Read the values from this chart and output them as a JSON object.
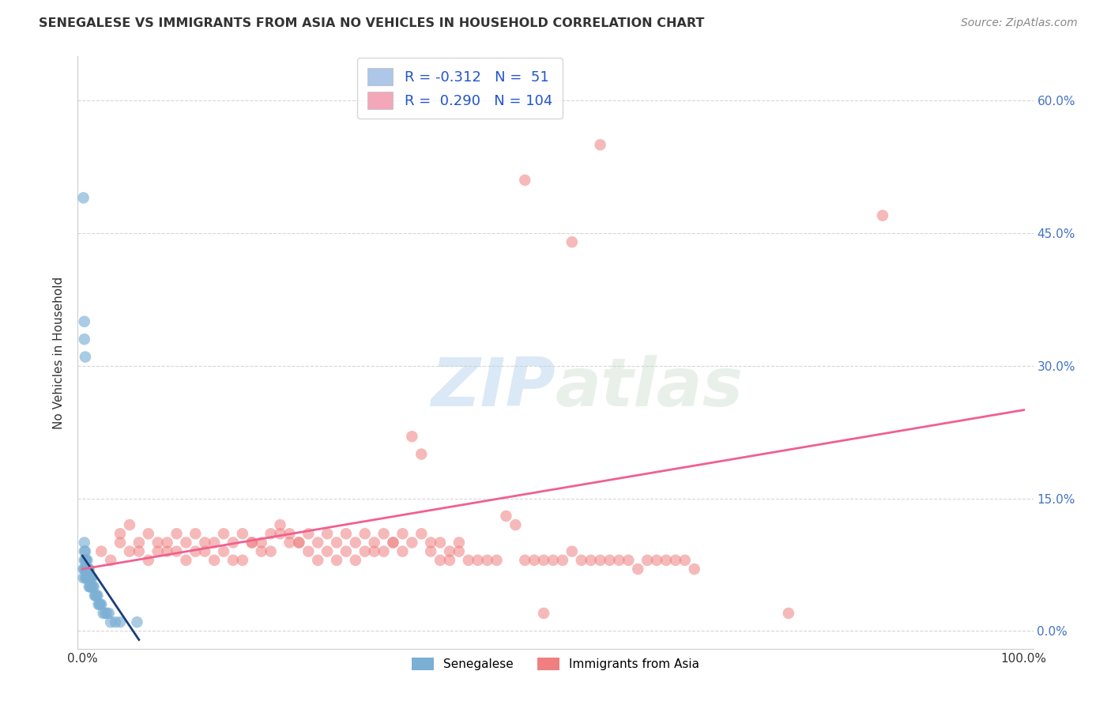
{
  "title": "SENEGALESE VS IMMIGRANTS FROM ASIA NO VEHICLES IN HOUSEHOLD CORRELATION CHART",
  "source": "Source: ZipAtlas.com",
  "ylabel": "No Vehicles in Household",
  "legend_label_senegalese": "Senegalese",
  "legend_label_asia": "Immigrants from Asia",
  "watermark_zip": "ZIP",
  "watermark_atlas": "atlas",
  "senegalese_color": "#7bafd4",
  "asia_color": "#f08080",
  "trendline_senegalese_color": "#1a3e7a",
  "trendline_asia_color": "#f06090",
  "background_color": "#ffffff",
  "grid_color": "#cccccc",
  "legend_patch_sen": "#aec6e8",
  "legend_patch_asia": "#f4a7b9",
  "legend_text_color": "#2255cc",
  "right_axis_color": "#4472c4",
  "title_color": "#333333",
  "source_color": "#888888",
  "y_tick_pos": [
    0.0,
    0.15,
    0.3,
    0.45,
    0.6
  ],
  "y_tick_labels_right": [
    "0.0%",
    "15.0%",
    "30.0%",
    "45.0%",
    "60.0%"
  ],
  "x_tick_pos": [
    0.0,
    0.1,
    0.2,
    0.3,
    0.4,
    0.5,
    0.6,
    0.7,
    0.8,
    0.9,
    1.0
  ],
  "x_tick_labels": [
    "0.0%",
    "",
    "",
    "",
    "",
    "",
    "",
    "",
    "",
    "",
    "100.0%"
  ],
  "xlim": [
    -0.005,
    1.01
  ],
  "ylim": [
    -0.02,
    0.65
  ],
  "senegalese_x": [
    0.001,
    0.001,
    0.002,
    0.002,
    0.002,
    0.002,
    0.003,
    0.003,
    0.003,
    0.003,
    0.004,
    0.004,
    0.004,
    0.004,
    0.005,
    0.005,
    0.005,
    0.006,
    0.006,
    0.006,
    0.007,
    0.007,
    0.007,
    0.008,
    0.008,
    0.009,
    0.009,
    0.01,
    0.01,
    0.011,
    0.012,
    0.013,
    0.014,
    0.015,
    0.016,
    0.017,
    0.018,
    0.019,
    0.02,
    0.022,
    0.024,
    0.026,
    0.028,
    0.03,
    0.035,
    0.04,
    0.001,
    0.002,
    0.002,
    0.003,
    0.058
  ],
  "senegalese_y": [
    0.06,
    0.07,
    0.07,
    0.08,
    0.09,
    0.1,
    0.06,
    0.07,
    0.08,
    0.09,
    0.06,
    0.07,
    0.07,
    0.08,
    0.06,
    0.07,
    0.08,
    0.06,
    0.07,
    0.07,
    0.05,
    0.06,
    0.07,
    0.05,
    0.06,
    0.05,
    0.06,
    0.05,
    0.06,
    0.05,
    0.05,
    0.04,
    0.04,
    0.04,
    0.04,
    0.03,
    0.03,
    0.03,
    0.03,
    0.02,
    0.02,
    0.02,
    0.02,
    0.01,
    0.01,
    0.01,
    0.49,
    0.35,
    0.33,
    0.31,
    0.01
  ],
  "asia_x": [
    0.02,
    0.03,
    0.04,
    0.05,
    0.06,
    0.07,
    0.08,
    0.09,
    0.1,
    0.11,
    0.12,
    0.13,
    0.14,
    0.15,
    0.16,
    0.17,
    0.18,
    0.19,
    0.2,
    0.21,
    0.22,
    0.23,
    0.24,
    0.25,
    0.26,
    0.27,
    0.28,
    0.29,
    0.3,
    0.31,
    0.32,
    0.33,
    0.34,
    0.35,
    0.36,
    0.37,
    0.38,
    0.39,
    0.4,
    0.41,
    0.42,
    0.43,
    0.44,
    0.45,
    0.46,
    0.47,
    0.48,
    0.49,
    0.5,
    0.51,
    0.52,
    0.53,
    0.54,
    0.55,
    0.56,
    0.57,
    0.58,
    0.59,
    0.6,
    0.61,
    0.62,
    0.63,
    0.64,
    0.65,
    0.04,
    0.05,
    0.06,
    0.07,
    0.08,
    0.09,
    0.1,
    0.11,
    0.12,
    0.13,
    0.14,
    0.15,
    0.16,
    0.17,
    0.18,
    0.19,
    0.2,
    0.21,
    0.22,
    0.23,
    0.24,
    0.25,
    0.26,
    0.27,
    0.28,
    0.29,
    0.3,
    0.31,
    0.32,
    0.33,
    0.34,
    0.35,
    0.36,
    0.37,
    0.38,
    0.39,
    0.4,
    0.47,
    0.52,
    0.55,
    0.85,
    0.49,
    0.75
  ],
  "asia_y": [
    0.09,
    0.08,
    0.1,
    0.09,
    0.09,
    0.08,
    0.09,
    0.09,
    0.09,
    0.08,
    0.09,
    0.09,
    0.08,
    0.09,
    0.08,
    0.08,
    0.1,
    0.09,
    0.09,
    0.11,
    0.1,
    0.1,
    0.09,
    0.08,
    0.09,
    0.08,
    0.09,
    0.08,
    0.09,
    0.09,
    0.09,
    0.1,
    0.09,
    0.22,
    0.2,
    0.09,
    0.08,
    0.08,
    0.09,
    0.08,
    0.08,
    0.08,
    0.08,
    0.13,
    0.12,
    0.08,
    0.08,
    0.08,
    0.08,
    0.08,
    0.09,
    0.08,
    0.08,
    0.08,
    0.08,
    0.08,
    0.08,
    0.07,
    0.08,
    0.08,
    0.08,
    0.08,
    0.08,
    0.07,
    0.11,
    0.12,
    0.1,
    0.11,
    0.1,
    0.1,
    0.11,
    0.1,
    0.11,
    0.1,
    0.1,
    0.11,
    0.1,
    0.11,
    0.1,
    0.1,
    0.11,
    0.12,
    0.11,
    0.1,
    0.11,
    0.1,
    0.11,
    0.1,
    0.11,
    0.1,
    0.11,
    0.1,
    0.11,
    0.1,
    0.11,
    0.1,
    0.11,
    0.1,
    0.1,
    0.09,
    0.1,
    0.51,
    0.44,
    0.55,
    0.47,
    0.02,
    0.02
  ],
  "sen_trend_x": [
    0.0,
    0.06
  ],
  "sen_trend_y": [
    0.085,
    -0.01
  ],
  "asia_trend_x": [
    0.0,
    1.0
  ],
  "asia_trend_y": [
    0.07,
    0.25
  ]
}
